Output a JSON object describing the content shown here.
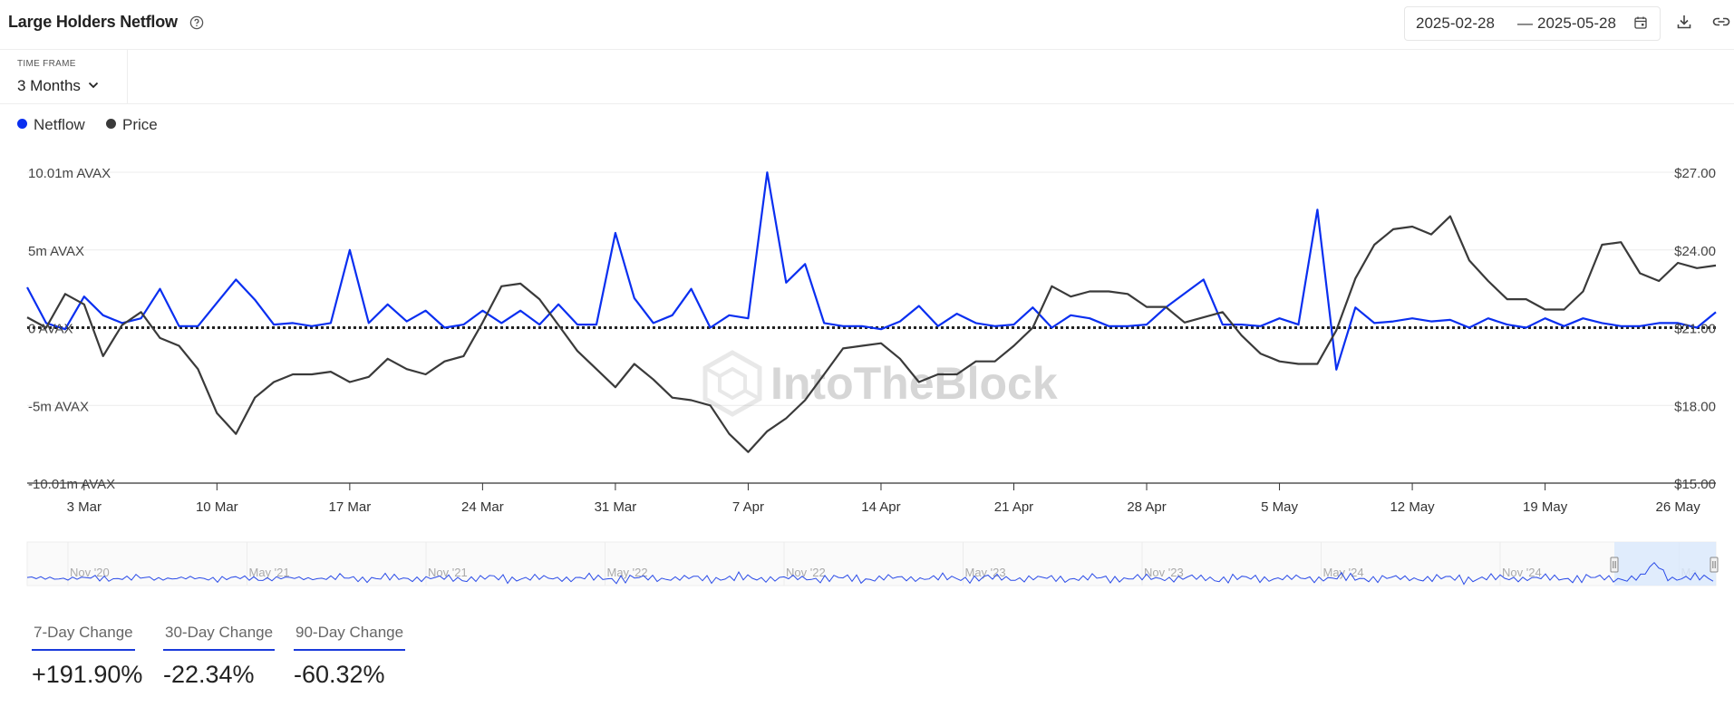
{
  "header": {
    "title": "Large Holders Netflow",
    "date_start": "2025-02-28",
    "date_sep": "—",
    "date_end": "2025-05-28"
  },
  "timeframe": {
    "label": "TIME FRAME",
    "value": "3 Months"
  },
  "legend": [
    {
      "name": "Netflow",
      "color": "#0a2ff0"
    },
    {
      "name": "Price",
      "color": "#3a3a3a"
    }
  ],
  "watermark": "IntoTheBlock",
  "stats": [
    {
      "label": "7-Day Change",
      "value": "+191.90%"
    },
    {
      "label": "30-Day Change",
      "value": "-22.34%"
    },
    {
      "label": "90-Day Change",
      "value": "-60.32%"
    }
  ],
  "navigator": {
    "labels": [
      "Nov '20",
      "May '21",
      "Nov '21",
      "May '22",
      "Nov '22",
      "May '23",
      "Nov '23",
      "May '24",
      "Nov '24",
      "Ma..."
    ]
  },
  "chart_data": {
    "type": "line",
    "x_tick_labels": [
      "3 Mar",
      "10 Mar",
      "17 Mar",
      "24 Mar",
      "31 Mar",
      "7 Apr",
      "14 Apr",
      "21 Apr",
      "28 Apr",
      "5 May",
      "12 May",
      "19 May",
      "26 May"
    ],
    "x_range": [
      "2025-02-28",
      "2025-05-28"
    ],
    "y_left": {
      "ticks": [
        "10.01m AVAX",
        "5m AVAX",
        "0 AVAX",
        "-5m AVAX",
        "-10.01m AVAX"
      ],
      "range": [
        -10.01,
        10.01
      ],
      "unit": "m AVAX"
    },
    "y_right": {
      "ticks": [
        "$27.00",
        "$24.00",
        "$21.00",
        "$18.00",
        "$15.00"
      ],
      "range": [
        15,
        27
      ]
    },
    "zero_line": "dotted",
    "series": [
      {
        "name": "Netflow",
        "axis": "left",
        "color": "#0a2ff0",
        "values": [
          2.6,
          0.3,
          -0.1,
          2.0,
          0.8,
          0.3,
          0.6,
          2.5,
          0.1,
          0.1,
          1.6,
          3.1,
          1.8,
          0.2,
          0.3,
          0.1,
          0.3,
          5.0,
          0.3,
          1.5,
          0.4,
          1.1,
          0.0,
          0.2,
          1.1,
          0.3,
          1.1,
          0.2,
          1.5,
          0.2,
          0.2,
          6.1,
          1.9,
          0.3,
          0.8,
          2.5,
          0.0,
          0.8,
          0.6,
          10.0,
          2.9,
          4.1,
          0.3,
          0.1,
          0.1,
          -0.1,
          0.4,
          1.4,
          0.1,
          0.9,
          0.3,
          0.1,
          0.2,
          1.3,
          0.0,
          0.8,
          0.6,
          0.1,
          0.1,
          0.2,
          1.3,
          2.2,
          3.1,
          0.2,
          0.2,
          0.1,
          0.6,
          0.2,
          7.6,
          -2.7,
          1.3,
          0.3,
          0.4,
          0.6,
          0.4,
          0.5,
          0.0,
          0.6,
          0.2,
          0.0,
          0.6,
          0.1,
          0.6,
          0.3,
          0.1,
          0.1,
          0.3,
          0.3,
          0.0,
          1.0
        ]
      },
      {
        "name": "Price",
        "axis": "right",
        "color": "#3a3a3a",
        "values": [
          21.4,
          21.0,
          22.3,
          21.9,
          19.9,
          21.1,
          21.6,
          20.6,
          20.3,
          19.4,
          17.7,
          16.9,
          18.3,
          18.9,
          19.2,
          19.2,
          19.3,
          18.9,
          19.1,
          19.8,
          19.4,
          19.2,
          19.7,
          19.9,
          21.2,
          22.6,
          22.7,
          22.1,
          21.1,
          20.1,
          19.4,
          18.7,
          19.6,
          19.0,
          18.3,
          18.2,
          18.0,
          16.9,
          16.2,
          17.0,
          17.5,
          18.2,
          19.2,
          20.2,
          20.3,
          20.4,
          19.8,
          18.9,
          19.2,
          19.2,
          19.7,
          19.7,
          20.3,
          21.0,
          22.6,
          22.2,
          22.4,
          22.4,
          22.3,
          21.8,
          21.8,
          21.2,
          21.4,
          21.6,
          20.7,
          20.0,
          19.7,
          19.6,
          19.6,
          20.9,
          22.9,
          24.2,
          24.8,
          24.9,
          24.6,
          25.3,
          23.6,
          22.8,
          22.1,
          22.1,
          21.7,
          21.7,
          22.4,
          24.2,
          24.3,
          23.1,
          22.8,
          23.5,
          23.3,
          23.4
        ]
      }
    ]
  }
}
